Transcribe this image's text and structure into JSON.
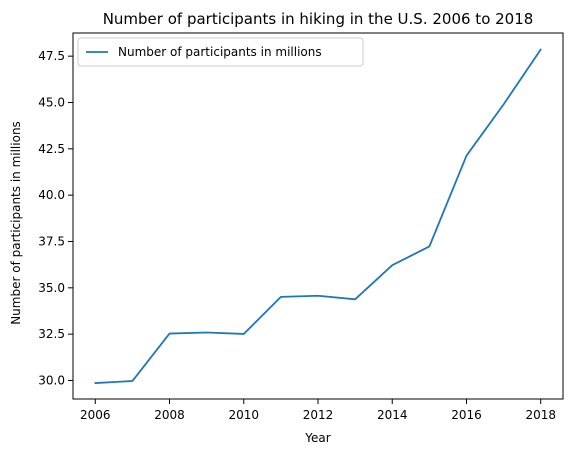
{
  "chart_data": {
    "type": "line",
    "title": "Number of participants in hiking in the U.S. 2006 to 2018",
    "xlabel": "Year",
    "ylabel": "Number of participants in millions",
    "x": [
      2006,
      2007,
      2008,
      2009,
      2010,
      2011,
      2012,
      2013,
      2014,
      2015,
      2016,
      2017,
      2018
    ],
    "series": [
      {
        "name": "Number of participants in millions",
        "color": "#1f77b4",
        "values": [
          29.86,
          29.97,
          32.53,
          32.59,
          32.51,
          34.51,
          34.57,
          34.38,
          36.22,
          37.23,
          42.13,
          44.9,
          47.86
        ]
      }
    ],
    "xlim": [
      2005.4,
      2018.6
    ],
    "ylim": [
      29.0,
      48.75
    ],
    "xticks": [
      2006,
      2008,
      2010,
      2012,
      2014,
      2016,
      2018
    ],
    "yticks": [
      "30.0",
      "32.5",
      "35.0",
      "37.5",
      "40.0",
      "42.5",
      "45.0",
      "47.5"
    ],
    "grid": false,
    "legend": "upper-left"
  }
}
